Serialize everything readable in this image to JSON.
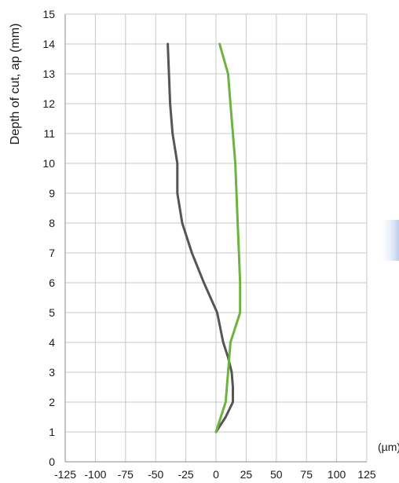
{
  "chart_data": {
    "type": "line",
    "title": "",
    "xlabel": "",
    "ylabel": "Depth of cut, ap (mm)",
    "x_unit_label": "(µm)",
    "xlim": [
      -125,
      125
    ],
    "ylim": [
      0,
      15
    ],
    "x_ticks": [
      -125,
      -100,
      -75,
      -50,
      -25,
      0,
      25,
      50,
      75,
      100,
      125
    ],
    "y_ticks": [
      0,
      1,
      2,
      3,
      4,
      5,
      6,
      7,
      8,
      9,
      10,
      11,
      12,
      13,
      14,
      15
    ],
    "grid": true,
    "series": [
      {
        "color": "#555555",
        "points": [
          {
            "x": 0,
            "y": 1
          },
          {
            "x": 8,
            "y": 1.5
          },
          {
            "x": 14,
            "y": 2
          },
          {
            "x": 14,
            "y": 2.5
          },
          {
            "x": 13,
            "y": 3
          },
          {
            "x": 10,
            "y": 3.5
          },
          {
            "x": 6,
            "y": 4
          },
          {
            "x": 1,
            "y": 5
          },
          {
            "x": -10,
            "y": 6
          },
          {
            "x": -20,
            "y": 7
          },
          {
            "x": -28,
            "y": 8
          },
          {
            "x": -32,
            "y": 9
          },
          {
            "x": -32,
            "y": 10
          },
          {
            "x": -36,
            "y": 11
          },
          {
            "x": -38,
            "y": 12
          },
          {
            "x": -39,
            "y": 13
          },
          {
            "x": -40,
            "y": 14
          }
        ]
      },
      {
        "color": "#6cb33f",
        "points": [
          {
            "x": 0,
            "y": 1
          },
          {
            "x": 8,
            "y": 2
          },
          {
            "x": 10,
            "y": 3
          },
          {
            "x": 12,
            "y": 4
          },
          {
            "x": 20,
            "y": 5
          },
          {
            "x": 20,
            "y": 6
          },
          {
            "x": 19,
            "y": 7
          },
          {
            "x": 18,
            "y": 8
          },
          {
            "x": 17,
            "y": 9
          },
          {
            "x": 16,
            "y": 10
          },
          {
            "x": 14,
            "y": 11
          },
          {
            "x": 12,
            "y": 12
          },
          {
            "x": 10,
            "y": 13
          },
          {
            "x": 3,
            "y": 14
          }
        ]
      }
    ]
  },
  "side_tab_color": "#c4d6f2"
}
